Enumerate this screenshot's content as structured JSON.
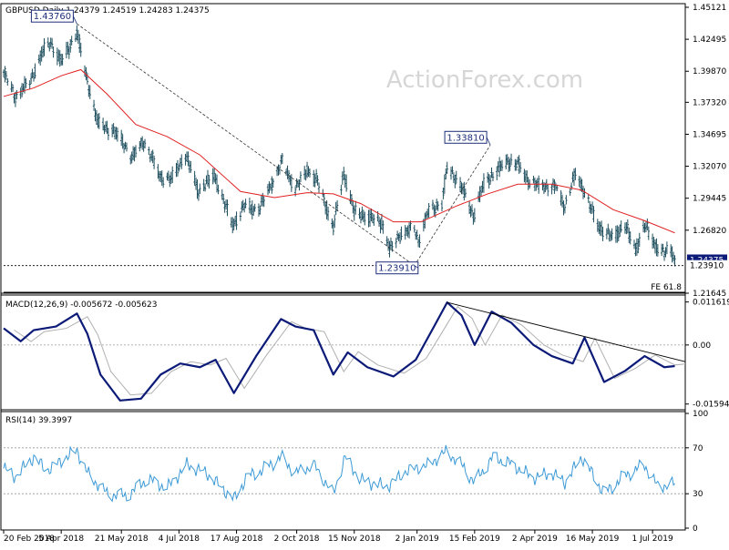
{
  "watermark": "ActionForex.com",
  "chart_data": [
    {
      "type": "candlestick",
      "symbol": "GBPUSD,Daily",
      "ohlc_label": "1.24379 1.24519 1.24283 1.24375",
      "ylim": [
        1.21645,
        1.45121
      ],
      "y_ticks": [
        "1.45121",
        "1.42495",
        "1.39870",
        "1.37320",
        "1.34695",
        "1.32070",
        "1.29445",
        "1.26820",
        "1.21645"
      ],
      "current_price": "1.24375",
      "support_price": "1.23910",
      "fe_label": "FE 61.8",
      "annotations": [
        {
          "label": "1.43760",
          "date": "2018-04-17",
          "price": 1.4376
        },
        {
          "label": "1.33810",
          "date": "2019-02-27",
          "price": 1.3381
        },
        {
          "label": "1.23910",
          "date": "2018-12-31",
          "price": 1.2391
        }
      ],
      "trend_lines": [
        {
          "from": [
            "2018-04-17",
            1.4376
          ],
          "to": [
            "2018-12-31",
            1.2391
          ]
        },
        {
          "from": [
            "2018-12-31",
            1.2391
          ],
          "to": [
            "2019-02-27",
            1.3381
          ]
        }
      ],
      "price_path": [
        [
          "2018-02-20",
          1.398
        ],
        [
          "2018-03-01",
          1.378
        ],
        [
          "2018-03-12",
          1.39
        ],
        [
          "2018-03-22",
          1.415
        ],
        [
          "2018-03-28",
          1.422
        ],
        [
          "2018-04-05",
          1.406
        ],
        [
          "2018-04-17",
          1.43
        ],
        [
          "2018-04-24",
          1.395
        ],
        [
          "2018-05-03",
          1.356
        ],
        [
          "2018-05-14",
          1.35
        ],
        [
          "2018-05-21",
          1.343
        ],
        [
          "2018-05-29",
          1.328
        ],
        [
          "2018-06-07",
          1.342
        ],
        [
          "2018-06-20",
          1.312
        ],
        [
          "2018-06-28",
          1.31
        ],
        [
          "2018-07-09",
          1.33
        ],
        [
          "2018-07-19",
          1.3
        ],
        [
          "2018-07-31",
          1.313
        ],
        [
          "2018-08-14",
          1.272
        ],
        [
          "2018-08-23",
          1.288
        ],
        [
          "2018-09-03",
          1.285
        ],
        [
          "2018-09-12",
          1.305
        ],
        [
          "2018-09-21",
          1.325
        ],
        [
          "2018-10-01",
          1.302
        ],
        [
          "2018-10-10",
          1.318
        ],
        [
          "2018-10-18",
          1.308
        ],
        [
          "2018-10-30",
          1.27
        ],
        [
          "2018-11-07",
          1.315
        ],
        [
          "2018-11-15",
          1.283
        ],
        [
          "2018-11-27",
          1.278
        ],
        [
          "2018-12-06",
          1.275
        ],
        [
          "2018-12-12",
          1.252
        ],
        [
          "2018-12-20",
          1.265
        ],
        [
          "2018-12-31",
          1.27
        ],
        [
          "2019-01-03",
          1.26
        ],
        [
          "2019-01-11",
          1.285
        ],
        [
          "2019-01-21",
          1.29
        ],
        [
          "2019-01-25",
          1.32
        ],
        [
          "2019-02-04",
          1.306
        ],
        [
          "2019-02-14",
          1.28
        ],
        [
          "2019-02-22",
          1.306
        ],
        [
          "2019-03-05",
          1.318
        ],
        [
          "2019-03-13",
          1.325
        ],
        [
          "2019-03-20",
          1.322
        ],
        [
          "2019-03-29",
          1.308
        ],
        [
          "2019-04-05",
          1.305
        ],
        [
          "2019-04-18",
          1.304
        ],
        [
          "2019-04-25",
          1.288
        ],
        [
          "2019-05-03",
          1.315
        ],
        [
          "2019-05-10",
          1.3
        ],
        [
          "2019-05-20",
          1.272
        ],
        [
          "2019-05-31",
          1.262
        ],
        [
          "2019-06-10",
          1.272
        ],
        [
          "2019-06-18",
          1.252
        ],
        [
          "2019-06-25",
          1.272
        ],
        [
          "2019-07-03",
          1.256
        ],
        [
          "2019-07-10",
          1.249
        ],
        [
          "2019-07-15",
          1.253
        ],
        [
          "2019-07-18",
          1.2437
        ]
      ],
      "ma_path": [
        [
          "2018-02-20",
          1.378
        ],
        [
          "2018-03-15",
          1.385
        ],
        [
          "2018-04-05",
          1.395
        ],
        [
          "2018-04-20",
          1.4
        ],
        [
          "2018-05-10",
          1.38
        ],
        [
          "2018-06-01",
          1.355
        ],
        [
          "2018-06-25",
          1.345
        ],
        [
          "2018-07-20",
          1.33
        ],
        [
          "2018-08-20",
          1.3
        ],
        [
          "2018-09-15",
          1.295
        ],
        [
          "2018-10-10",
          1.299
        ],
        [
          "2018-10-30",
          1.298
        ],
        [
          "2018-11-20",
          1.29
        ],
        [
          "2018-12-15",
          1.275
        ],
        [
          "2019-01-05",
          1.275
        ],
        [
          "2019-02-01",
          1.288
        ],
        [
          "2019-02-25",
          1.298
        ],
        [
          "2019-03-20",
          1.306
        ],
        [
          "2019-04-15",
          1.306
        ],
        [
          "2019-05-08",
          1.301
        ],
        [
          "2019-06-01",
          1.285
        ],
        [
          "2019-06-25",
          1.276
        ],
        [
          "2019-07-18",
          1.266
        ]
      ]
    },
    {
      "type": "line",
      "label": "MACD(12,26,9) -0.005672 -0.005623",
      "ylim": [
        -0.0175,
        0.013
      ],
      "y_ticks": [
        "0.011619",
        "0.00",
        "-0.015949"
      ],
      "zero_line": 0.0,
      "trend_line": {
        "from": [
          "2019-01-25",
          0.0115
        ],
        "to": [
          "2019-07-18",
          -0.0045
        ]
      },
      "series": [
        {
          "points": [
            [
              "2018-02-20",
              0.0045
            ],
            [
              "2018-03-05",
              0.001
            ],
            [
              "2018-03-15",
              0.004
            ],
            [
              "2018-04-01",
              0.005
            ],
            [
              "2018-04-17",
              0.0085
            ],
            [
              "2018-04-25",
              0.003
            ],
            [
              "2018-05-05",
              -0.008
            ],
            [
              "2018-05-20",
              -0.015
            ],
            [
              "2018-06-05",
              -0.0145
            ],
            [
              "2018-06-20",
              -0.008
            ],
            [
              "2018-07-05",
              -0.005
            ],
            [
              "2018-07-20",
              -0.006
            ],
            [
              "2018-08-01",
              -0.004
            ],
            [
              "2018-08-15",
              -0.013
            ],
            [
              "2018-09-01",
              -0.003
            ],
            [
              "2018-09-20",
              0.007
            ],
            [
              "2018-10-01",
              0.005
            ],
            [
              "2018-10-15",
              0.004
            ],
            [
              "2018-10-30",
              -0.008
            ],
            [
              "2018-11-10",
              -0.002
            ],
            [
              "2018-11-25",
              -0.006
            ],
            [
              "2018-12-15",
              -0.0085
            ],
            [
              "2019-01-01",
              -0.004
            ],
            [
              "2019-01-15",
              0.005
            ],
            [
              "2019-01-25",
              0.0115
            ],
            [
              "2019-02-05",
              0.008
            ],
            [
              "2019-02-15",
              0.0
            ],
            [
              "2019-02-28",
              0.009
            ],
            [
              "2019-03-15",
              0.006
            ],
            [
              "2019-04-01",
              0.0
            ],
            [
              "2019-04-15",
              -0.003
            ],
            [
              "2019-05-01",
              -0.005
            ],
            [
              "2019-05-10",
              0.002
            ],
            [
              "2019-05-25",
              -0.01
            ],
            [
              "2019-06-10",
              -0.007
            ],
            [
              "2019-06-25",
              -0.003
            ],
            [
              "2019-07-10",
              -0.006
            ],
            [
              "2019-07-18",
              -0.0057
            ]
          ]
        }
      ]
    },
    {
      "type": "line",
      "label": "RSI(14) 39.3997",
      "ylim": [
        0,
        100
      ],
      "y_ticks": [
        "100",
        "70",
        "30",
        "0"
      ],
      "levels": [
        70,
        30
      ],
      "series": [
        {
          "points": [
            [
              "2018-02-20",
              52
            ],
            [
              "2018-03-01",
              45
            ],
            [
              "2018-03-15",
              62
            ],
            [
              "2018-03-25",
              50
            ],
            [
              "2018-04-17",
              68
            ],
            [
              "2018-04-25",
              48
            ],
            [
              "2018-05-10",
              30
            ],
            [
              "2018-05-25",
              28
            ],
            [
              "2018-06-10",
              43
            ],
            [
              "2018-06-25",
              35
            ],
            [
              "2018-07-10",
              55
            ],
            [
              "2018-07-25",
              48
            ],
            [
              "2018-08-15",
              25
            ],
            [
              "2018-08-25",
              45
            ],
            [
              "2018-09-05",
              50
            ],
            [
              "2018-09-20",
              62
            ],
            [
              "2018-10-01",
              48
            ],
            [
              "2018-10-15",
              55
            ],
            [
              "2018-10-30",
              30
            ],
            [
              "2018-11-08",
              62
            ],
            [
              "2018-11-20",
              42
            ],
            [
              "2018-12-10",
              36
            ],
            [
              "2018-12-25",
              50
            ],
            [
              "2019-01-10",
              55
            ],
            [
              "2019-01-25",
              67
            ],
            [
              "2019-02-05",
              55
            ],
            [
              "2019-02-15",
              40
            ],
            [
              "2019-03-01",
              62
            ],
            [
              "2019-03-15",
              56
            ],
            [
              "2019-04-01",
              44
            ],
            [
              "2019-04-15",
              48
            ],
            [
              "2019-04-25",
              40
            ],
            [
              "2019-05-08",
              62
            ],
            [
              "2019-05-25",
              30
            ],
            [
              "2019-06-10",
              46
            ],
            [
              "2019-06-25",
              55
            ],
            [
              "2019-07-05",
              36
            ],
            [
              "2019-07-18",
              39
            ]
          ]
        }
      ]
    }
  ],
  "x_axis": {
    "tick_labels": [
      "20 Feb 2018",
      "5 Apr 2018",
      "21 May 2018",
      "4 Jul 2018",
      "17 Aug 2018",
      "2 Oct 2018",
      "15 Nov 2018",
      "2 Jan 2019",
      "15 Feb 2019",
      "2 Apr 2019",
      "16 May 2019",
      "1 Jul 2019"
    ],
    "tick_dates": [
      "2018-02-20",
      "2018-04-05",
      "2018-05-21",
      "2018-07-04",
      "2018-08-17",
      "2018-10-02",
      "2018-11-15",
      "2019-01-02",
      "2019-02-15",
      "2019-04-02",
      "2019-05-16",
      "2019-07-01"
    ],
    "range": [
      "2018-02-20",
      "2019-07-26"
    ]
  },
  "colors": {
    "candles": "#1f4f5f",
    "ma": "#e02020",
    "macd": "#0c1a78",
    "signal": "#b0b0b0",
    "rsi": "#3c9ad6",
    "current_price_box": "#0c1a78",
    "trend": "#000000"
  }
}
